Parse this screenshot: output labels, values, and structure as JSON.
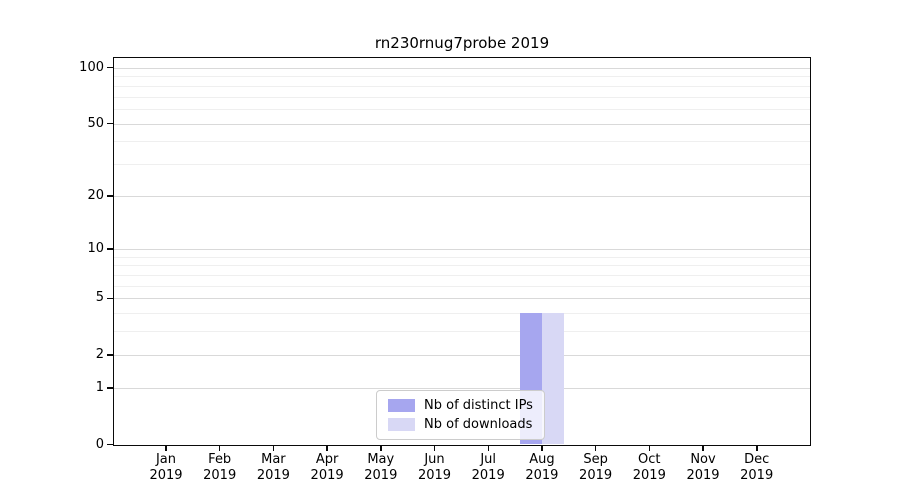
{
  "chart_data": {
    "type": "bar",
    "title": "rn230rnug7probe 2019",
    "x": {
      "categories": [
        "Jan",
        "Feb",
        "Mar",
        "Apr",
        "May",
        "Jun",
        "Jul",
        "Aug",
        "Sep",
        "Oct",
        "Nov",
        "Dec"
      ],
      "year_label": "2019"
    },
    "series": [
      {
        "name": "Nb of distinct IPs",
        "color": "#a6a6ef",
        "values": [
          0,
          0,
          0,
          0,
          0,
          0,
          0,
          4,
          0,
          0,
          0,
          0
        ]
      },
      {
        "name": "Nb of downloads",
        "color": "#d8d8f5",
        "values": [
          0,
          0,
          0,
          0,
          0,
          0,
          0,
          4,
          0,
          0,
          0,
          0
        ]
      }
    ],
    "y_axis": {
      "scale": "log10(value+1)",
      "tick_labels": [
        0,
        1,
        2,
        5,
        10,
        20,
        50,
        100
      ],
      "minor_gridlines": [
        3,
        4,
        6,
        7,
        8,
        9,
        30,
        40,
        60,
        70,
        80,
        90
      ],
      "axis_max": 114
    },
    "legend": {
      "position": "lower center",
      "entries": [
        "Nb of distinct IPs",
        "Nb of downloads"
      ]
    },
    "colors": {
      "grid_major": "#d9d9d9",
      "grid_minor": "#efefef",
      "axis": "#0a0a0a",
      "text": "#000000",
      "background": "#ffffff"
    },
    "grid": "horizontal"
  }
}
